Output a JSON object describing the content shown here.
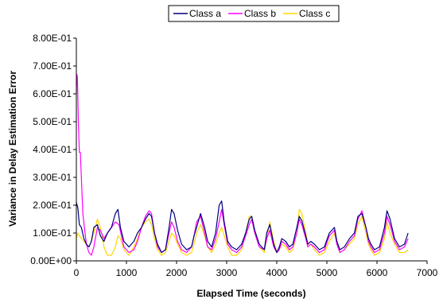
{
  "chart_data": {
    "type": "line",
    "xlabel": "Elapsed Time (seconds)",
    "ylabel": "Variance in Delay Estimation Error",
    "xlim": [
      0,
      7000
    ],
    "ylim": [
      0,
      0.8
    ],
    "x_ticks": [
      0,
      1000,
      2000,
      3000,
      4000,
      5000,
      6000,
      7000
    ],
    "x_tick_labels": [
      "0",
      "1000",
      "2000",
      "3000",
      "4000",
      "5000",
      "6000",
      "7000"
    ],
    "y_ticks": [
      0,
      0.1,
      0.2,
      0.3,
      0.4,
      0.5,
      0.6,
      0.7,
      0.8
    ],
    "y_tick_labels": [
      "0.00E+00",
      "1.00E-01",
      "2.00E-01",
      "3.00E-01",
      "4.00E-01",
      "5.00E-01",
      "6.00E-01",
      "7.00E-01",
      "8.00E-01"
    ],
    "grid": false,
    "legend_position": "top-center",
    "series": [
      {
        "name": "Class a",
        "color": "#000080",
        "x": [
          0,
          30,
          60,
          100,
          150,
          200,
          250,
          300,
          350,
          420,
          480,
          550,
          620,
          700,
          780,
          830,
          880,
          950,
          1050,
          1150,
          1220,
          1300,
          1380,
          1450,
          1500,
          1560,
          1620,
          1700,
          1780,
          1850,
          1900,
          1950,
          2020,
          2100,
          2200,
          2300,
          2350,
          2400,
          2480,
          2560,
          2620,
          2700,
          2780,
          2850,
          2900,
          2950,
          3020,
          3100,
          3200,
          3300,
          3380,
          3450,
          3500,
          3560,
          3650,
          3750,
          3800,
          3860,
          3940,
          4000,
          4050,
          4100,
          4180,
          4250,
          4320,
          4400,
          4450,
          4500,
          4580,
          4620,
          4680,
          4750,
          4850,
          4950,
          5050,
          5150,
          5200,
          5260,
          5350,
          5450,
          5550,
          5620,
          5700,
          5780,
          5830,
          5880,
          5950,
          6050,
          6150,
          6200,
          6260,
          6350,
          6450,
          6550,
          6620
        ],
        "values": [
          0.21,
          0.19,
          0.13,
          0.12,
          0.08,
          0.06,
          0.05,
          0.07,
          0.12,
          0.13,
          0.09,
          0.07,
          0.1,
          0.12,
          0.17,
          0.185,
          0.12,
          0.07,
          0.05,
          0.07,
          0.1,
          0.12,
          0.15,
          0.17,
          0.16,
          0.1,
          0.06,
          0.03,
          0.04,
          0.12,
          0.185,
          0.17,
          0.11,
          0.06,
          0.04,
          0.05,
          0.09,
          0.12,
          0.17,
          0.12,
          0.07,
          0.05,
          0.1,
          0.2,
          0.215,
          0.14,
          0.07,
          0.05,
          0.04,
          0.06,
          0.1,
          0.15,
          0.16,
          0.11,
          0.06,
          0.04,
          0.1,
          0.13,
          0.06,
          0.03,
          0.05,
          0.08,
          0.07,
          0.05,
          0.06,
          0.12,
          0.16,
          0.145,
          0.09,
          0.06,
          0.07,
          0.06,
          0.04,
          0.05,
          0.1,
          0.12,
          0.07,
          0.04,
          0.05,
          0.08,
          0.1,
          0.16,
          0.17,
          0.12,
          0.08,
          0.06,
          0.04,
          0.05,
          0.12,
          0.18,
          0.15,
          0.08,
          0.05,
          0.06,
          0.1
        ]
      },
      {
        "name": "Class b",
        "color": "#ff00ff",
        "x": [
          0,
          10,
          20,
          40,
          60,
          80,
          100,
          130,
          160,
          200,
          250,
          300,
          350,
          420,
          480,
          550,
          620,
          700,
          780,
          850,
          900,
          950,
          1050,
          1150,
          1220,
          1300,
          1380,
          1450,
          1500,
          1560,
          1620,
          1700,
          1780,
          1850,
          1900,
          1950,
          2020,
          2100,
          2200,
          2300,
          2350,
          2400,
          2480,
          2560,
          2620,
          2700,
          2780,
          2850,
          2900,
          2950,
          3020,
          3100,
          3200,
          3300,
          3380,
          3450,
          3500,
          3560,
          3650,
          3750,
          3800,
          3860,
          3940,
          4000,
          4050,
          4100,
          4180,
          4250,
          4320,
          4400,
          4450,
          4500,
          4580,
          4620,
          4680,
          4750,
          4850,
          4950,
          5050,
          5150,
          5200,
          5260,
          5350,
          5450,
          5550,
          5620,
          5700,
          5780,
          5830,
          5880,
          5950,
          6050,
          6150,
          6200,
          6260,
          6350,
          6450,
          6550,
          6620
        ],
        "values": [
          0.6,
          0.67,
          0.66,
          0.5,
          0.39,
          0.39,
          0.3,
          0.17,
          0.12,
          0.06,
          0.03,
          0.02,
          0.05,
          0.12,
          0.11,
          0.08,
          0.1,
          0.12,
          0.14,
          0.13,
          0.09,
          0.05,
          0.03,
          0.04,
          0.07,
          0.12,
          0.16,
          0.18,
          0.17,
          0.1,
          0.05,
          0.03,
          0.04,
          0.1,
          0.14,
          0.12,
          0.07,
          0.04,
          0.03,
          0.05,
          0.09,
          0.14,
          0.16,
          0.1,
          0.05,
          0.04,
          0.08,
          0.14,
          0.185,
          0.13,
          0.06,
          0.04,
          0.03,
          0.05,
          0.09,
          0.13,
          0.15,
          0.1,
          0.05,
          0.04,
          0.08,
          0.11,
          0.05,
          0.03,
          0.04,
          0.07,
          0.06,
          0.04,
          0.05,
          0.1,
          0.15,
          0.13,
          0.08,
          0.05,
          0.06,
          0.05,
          0.03,
          0.04,
          0.09,
          0.11,
          0.06,
          0.03,
          0.04,
          0.07,
          0.09,
          0.15,
          0.18,
          0.12,
          0.07,
          0.05,
          0.03,
          0.04,
          0.1,
          0.16,
          0.13,
          0.07,
          0.04,
          0.05,
          0.08
        ]
      },
      {
        "name": "Class c",
        "color": "#ffd700",
        "x": [
          0,
          30,
          60,
          100,
          150,
          200,
          250,
          300,
          350,
          420,
          480,
          550,
          620,
          700,
          780,
          830,
          880,
          950,
          1050,
          1150,
          1220,
          1300,
          1380,
          1450,
          1500,
          1560,
          1620,
          1700,
          1780,
          1850,
          1900,
          1950,
          2020,
          2100,
          2200,
          2300,
          2350,
          2400,
          2480,
          2560,
          2620,
          2700,
          2780,
          2850,
          2900,
          2950,
          3020,
          3100,
          3200,
          3300,
          3380,
          3450,
          3500,
          3560,
          3650,
          3750,
          3800,
          3860,
          3940,
          4000,
          4050,
          4100,
          4180,
          4250,
          4320,
          4400,
          4450,
          4500,
          4580,
          4620,
          4680,
          4750,
          4850,
          4950,
          5050,
          5150,
          5200,
          5260,
          5350,
          5450,
          5550,
          5620,
          5700,
          5780,
          5830,
          5880,
          5950,
          6050,
          6150,
          6200,
          6260,
          6350,
          6450,
          6550,
          6620
        ],
        "values": [
          0.08,
          0.1,
          0.09,
          0.08,
          0.07,
          0.06,
          0.05,
          0.07,
          0.1,
          0.15,
          0.12,
          0.05,
          0.02,
          0.02,
          0.05,
          0.09,
          0.08,
          0.04,
          0.02,
          0.05,
          0.08,
          0.12,
          0.14,
          0.15,
          0.13,
          0.08,
          0.04,
          0.02,
          0.03,
          0.07,
          0.1,
          0.09,
          0.06,
          0.03,
          0.02,
          0.03,
          0.06,
          0.1,
          0.13,
          0.09,
          0.05,
          0.03,
          0.06,
          0.1,
          0.12,
          0.09,
          0.05,
          0.02,
          0.02,
          0.04,
          0.1,
          0.16,
          0.16,
          0.1,
          0.05,
          0.03,
          0.08,
          0.14,
          0.07,
          0.03,
          0.04,
          0.06,
          0.05,
          0.03,
          0.04,
          0.1,
          0.185,
          0.17,
          0.1,
          0.06,
          0.06,
          0.04,
          0.02,
          0.03,
          0.07,
          0.1,
          0.06,
          0.03,
          0.04,
          0.06,
          0.08,
          0.13,
          0.16,
          0.1,
          0.06,
          0.04,
          0.02,
          0.03,
          0.08,
          0.14,
          0.1,
          0.06,
          0.03,
          0.03,
          0.04
        ]
      }
    ]
  }
}
